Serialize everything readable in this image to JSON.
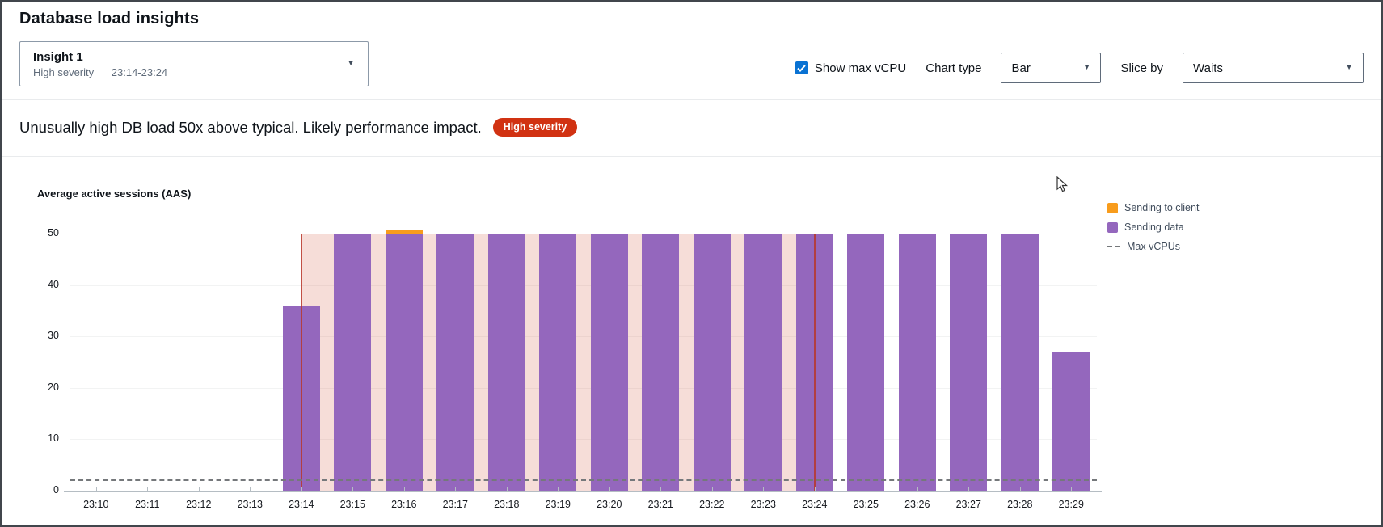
{
  "page": {
    "title": "Database load insights"
  },
  "insight_select": {
    "name": "Insight 1",
    "severity": "High severity",
    "time_range": "23:14-23:24"
  },
  "controls": {
    "show_max_vcpu_label": "Show max vCPU",
    "show_max_vcpu_checked": true,
    "chart_type_label": "Chart type",
    "chart_type_value": "Bar",
    "slice_by_label": "Slice by",
    "slice_by_value": "Waits"
  },
  "insight_banner": {
    "message": "Unusually high DB load 50x above typical. Likely performance impact.",
    "severity_badge": "High severity"
  },
  "colors": {
    "accent_blue": "#0972d3",
    "severity_red": "#d13212",
    "bar_purple": "#9467bd",
    "bar_orange": "#f89c1c",
    "region_fill": "rgba(214,102,76,0.22)",
    "region_line": "#b7372b",
    "max_vcpu_line": "#75787b",
    "gridline": "#f2f3f3",
    "axis_line": "#b5bdc3",
    "tick_text": "#16191f"
  },
  "chart_data": {
    "type": "bar",
    "title": "Average active sessions (AAS)",
    "x": [
      "23:10",
      "23:11",
      "23:12",
      "23:13",
      "23:14",
      "23:15",
      "23:16",
      "23:17",
      "23:18",
      "23:19",
      "23:20",
      "23:21",
      "23:22",
      "23:23",
      "23:24",
      "23:25",
      "23:26",
      "23:27",
      "23:28",
      "23:29"
    ],
    "series": [
      {
        "name": "Sending to client",
        "color": "#f89c1c",
        "values": [
          0,
          0,
          0,
          0,
          0,
          0,
          0.6,
          0,
          0,
          0,
          0,
          0,
          0,
          0,
          0,
          0,
          0,
          0,
          0,
          0
        ]
      },
      {
        "name": "Sending data",
        "color": "#9467bd",
        "values": [
          0,
          0,
          0,
          0,
          36,
          50,
          50,
          50,
          50,
          50,
          50,
          50,
          50,
          50,
          50,
          50,
          50,
          50,
          50,
          27
        ]
      }
    ],
    "max_vcpus": {
      "label": "Max vCPUs",
      "value": 2
    },
    "ylim": [
      0,
      50
    ],
    "yticks": [
      0,
      10,
      20,
      30,
      40,
      50
    ],
    "grid": true,
    "legend_position": "right",
    "highlight_region": {
      "from": "23:14",
      "to": "23:24"
    },
    "legend": [
      {
        "label": "Sending to client",
        "marker": "square",
        "color": "#f89c1c"
      },
      {
        "label": "Sending data",
        "marker": "square",
        "color": "#9467bd"
      },
      {
        "label": "Max vCPUs",
        "marker": "dashed-line",
        "color": "#75787b"
      }
    ]
  }
}
